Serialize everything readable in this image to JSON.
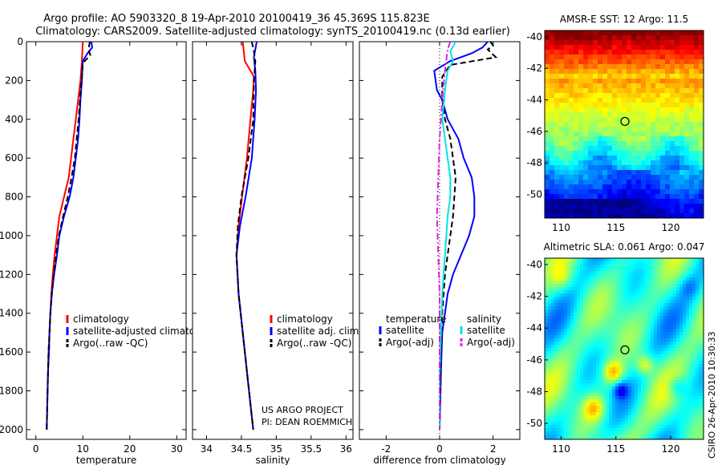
{
  "header": {
    "title_line1": "Argo profile: AO 5903320_8 19-Apr-2010 20100419_36 45.369S 115.823E",
    "title_line2": "Climatology: CARS2009. Satellite-adjusted climatology: synTS_20100419.nc (0.13d earlier)"
  },
  "footer": {
    "credit_line1": "US ARGO PROJECT",
    "credit_line2": "PI: DEAN ROEMMICH",
    "side_stamp": "CSIRO 26-Apr-2010 10:30:33"
  },
  "colors": {
    "climatology": "#ff0000",
    "satellite": "#0000ff",
    "argo": "#000000",
    "salinity_satellite": "#00e5e5",
    "salinity_argo": "#e020e0"
  },
  "chart_data": [
    {
      "id": "temperature",
      "type": "line",
      "xlabel": "temperature",
      "ylabel": "",
      "xlim": [
        -2,
        32
      ],
      "ylim": [
        2050,
        0
      ],
      "y_reversed": true,
      "xticks": [
        0,
        10,
        20,
        30
      ],
      "yticks": [
        0,
        200,
        400,
        600,
        800,
        1000,
        1200,
        1400,
        1600,
        1800,
        2000
      ],
      "legend": {
        "position": "lower-right",
        "entries": [
          "climatology",
          "satellite-adjusted climatology",
          "Argo(..raw -QC)"
        ]
      },
      "series": [
        {
          "name": "climatology",
          "color_key": "climatology",
          "dash": "solid",
          "points": [
            [
              10.0,
              0
            ],
            [
              9.9,
              50
            ],
            [
              9.8,
              100
            ],
            [
              9.5,
              200
            ],
            [
              9.0,
              300
            ],
            [
              8.5,
              400
            ],
            [
              8.0,
              500
            ],
            [
              7.5,
              600
            ],
            [
              7.0,
              700
            ],
            [
              6.0,
              800
            ],
            [
              5.0,
              900
            ],
            [
              4.5,
              1000
            ],
            [
              4.0,
              1100
            ],
            [
              3.6,
              1200
            ],
            [
              3.3,
              1300
            ],
            [
              3.1,
              1400
            ],
            [
              2.9,
              1500
            ],
            [
              2.7,
              1600
            ],
            [
              2.6,
              1700
            ],
            [
              2.5,
              1800
            ],
            [
              2.4,
              1900
            ],
            [
              2.3,
              2000
            ]
          ]
        },
        {
          "name": "satellite-adjusted climatology",
          "color_key": "satellite",
          "dash": "solid",
          "points": [
            [
              11.8,
              0
            ],
            [
              12.0,
              30
            ],
            [
              11.0,
              60
            ],
            [
              10.0,
              100
            ],
            [
              9.8,
              200
            ],
            [
              9.5,
              300
            ],
            [
              9.3,
              400
            ],
            [
              9.0,
              500
            ],
            [
              8.5,
              600
            ],
            [
              8.0,
              700
            ],
            [
              7.2,
              800
            ],
            [
              6.0,
              900
            ],
            [
              5.0,
              1000
            ],
            [
              4.5,
              1100
            ],
            [
              3.9,
              1200
            ],
            [
              3.4,
              1300
            ],
            [
              3.1,
              1400
            ],
            [
              2.9,
              1500
            ],
            [
              2.8,
              1600
            ],
            [
              2.6,
              1700
            ],
            [
              2.5,
              1800
            ],
            [
              2.4,
              1900
            ],
            [
              2.3,
              2000
            ]
          ]
        },
        {
          "name": "Argo(..raw -QC)",
          "color_key": "argo",
          "dash": "dashed",
          "points": [
            [
              11.5,
              0
            ],
            [
              11.2,
              40
            ],
            [
              11.6,
              70
            ],
            [
              10.0,
              110
            ],
            [
              9.7,
              200
            ],
            [
              9.4,
              300
            ],
            [
              9.1,
              400
            ],
            [
              8.7,
              500
            ],
            [
              8.3,
              600
            ],
            [
              7.6,
              700
            ],
            [
              6.8,
              800
            ],
            [
              5.8,
              900
            ],
            [
              4.9,
              1000
            ],
            [
              4.3,
              1100
            ],
            [
              3.8,
              1200
            ],
            [
              3.4,
              1300
            ],
            [
              3.1,
              1400
            ],
            [
              2.9,
              1500
            ],
            [
              2.7,
              1600
            ],
            [
              2.6,
              1700
            ],
            [
              2.5,
              1800
            ],
            [
              2.4,
              1900
            ],
            [
              2.3,
              2000
            ]
          ]
        }
      ]
    },
    {
      "id": "salinity",
      "type": "line",
      "xlabel": "salinity",
      "ylabel": "",
      "xlim": [
        33.8,
        36.1
      ],
      "ylim": [
        2050,
        0
      ],
      "y_reversed": true,
      "xticks": [
        34,
        34.5,
        35,
        35.5,
        36
      ],
      "yticks": [],
      "legend": {
        "position": "lower-right",
        "entries": [
          "climatology",
          "satellite adj. clim.",
          "Argo(..raw -QC)"
        ]
      },
      "series": [
        {
          "name": "climatology",
          "color_key": "climatology",
          "dash": "solid",
          "points": [
            [
              34.52,
              0
            ],
            [
              34.55,
              100
            ],
            [
              34.68,
              180
            ],
            [
              34.67,
              250
            ],
            [
              34.63,
              400
            ],
            [
              34.58,
              600
            ],
            [
              34.51,
              800
            ],
            [
              34.46,
              950
            ],
            [
              34.43,
              1100
            ],
            [
              34.46,
              1300
            ],
            [
              34.52,
              1500
            ],
            [
              34.58,
              1700
            ],
            [
              34.64,
              1900
            ],
            [
              34.67,
              2000
            ]
          ]
        },
        {
          "name": "satellite adj. clim.",
          "color_key": "satellite",
          "dash": "solid",
          "points": [
            [
              34.72,
              0
            ],
            [
              34.68,
              80
            ],
            [
              34.7,
              150
            ],
            [
              34.71,
              250
            ],
            [
              34.69,
              400
            ],
            [
              34.65,
              600
            ],
            [
              34.56,
              800
            ],
            [
              34.48,
              950
            ],
            [
              34.43,
              1100
            ],
            [
              34.46,
              1300
            ],
            [
              34.52,
              1500
            ],
            [
              34.58,
              1700
            ],
            [
              34.64,
              1900
            ],
            [
              34.67,
              2000
            ]
          ]
        },
        {
          "name": "Argo(..raw -QC)",
          "color_key": "argo",
          "dash": "dashed",
          "points": [
            [
              34.65,
              0
            ],
            [
              34.68,
              50
            ],
            [
              34.7,
              100
            ],
            [
              34.68,
              200
            ],
            [
              34.67,
              400
            ],
            [
              34.6,
              600
            ],
            [
              34.5,
              800
            ],
            [
              34.45,
              950
            ],
            [
              34.43,
              1100
            ],
            [
              34.46,
              1300
            ],
            [
              34.52,
              1500
            ],
            [
              34.58,
              1700
            ],
            [
              34.64,
              1900
            ],
            [
              34.67,
              2000
            ]
          ]
        }
      ]
    },
    {
      "id": "difference",
      "type": "line",
      "xlabel": "difference from climatology",
      "ylabel": "",
      "xlim": [
        -3,
        3
      ],
      "ylim": [
        2050,
        0
      ],
      "y_reversed": true,
      "xticks": [
        -2,
        0,
        2
      ],
      "yticks": [],
      "legend": {
        "position": "lower-center",
        "temperature_header": "temperature",
        "salinity_header": "salinity",
        "temperature_entries": [
          "satellite",
          "Argo(-adj)"
        ],
        "salinity_entries": [
          "satellite",
          "Argo(-adj)"
        ]
      },
      "series": [
        {
          "name": "temperature satellite",
          "color_key": "satellite",
          "dash": "solid",
          "points": [
            [
              1.8,
              0
            ],
            [
              1.6,
              30
            ],
            [
              1.2,
              60
            ],
            [
              0.4,
              100
            ],
            [
              -0.2,
              150
            ],
            [
              -0.1,
              250
            ],
            [
              0.1,
              300
            ],
            [
              0.3,
              400
            ],
            [
              0.7,
              500
            ],
            [
              0.9,
              600
            ],
            [
              1.2,
              700
            ],
            [
              1.3,
              800
            ],
            [
              1.3,
              900
            ],
            [
              1.1,
              1000
            ],
            [
              0.8,
              1100
            ],
            [
              0.5,
              1200
            ],
            [
              0.3,
              1300
            ],
            [
              0.2,
              1400
            ],
            [
              0.1,
              1500
            ],
            [
              0.05,
              1700
            ],
            [
              0.0,
              2000
            ]
          ]
        },
        {
          "name": "temperature Argo(-adj)",
          "color_key": "argo",
          "dash": "dashed",
          "points": [
            [
              1.9,
              0
            ],
            [
              2.0,
              20
            ],
            [
              1.8,
              40
            ],
            [
              2.1,
              80
            ],
            [
              0.4,
              120
            ],
            [
              0.1,
              180
            ],
            [
              0.1,
              300
            ],
            [
              0.2,
              400
            ],
            [
              0.4,
              500
            ],
            [
              0.5,
              600
            ],
            [
              0.6,
              700
            ],
            [
              0.5,
              900
            ],
            [
              0.3,
              1100
            ],
            [
              0.2,
              1200
            ],
            [
              0.1,
              1400
            ],
            [
              0.05,
              1600
            ],
            [
              0.0,
              2000
            ]
          ]
        },
        {
          "name": "salinity satellite",
          "color_key": "salinity_satellite",
          "dash": "solid",
          "points": [
            [
              0.6,
              0
            ],
            [
              0.4,
              50
            ],
            [
              0.5,
              100
            ],
            [
              0.3,
              150
            ],
            [
              0.2,
              250
            ],
            [
              0.1,
              400
            ],
            [
              0.2,
              500
            ],
            [
              0.3,
              600
            ],
            [
              0.4,
              700
            ],
            [
              0.4,
              800
            ],
            [
              0.3,
              900
            ],
            [
              0.2,
              1100
            ],
            [
              0.1,
              1300
            ],
            [
              0.05,
              1500
            ],
            [
              0.0,
              1700
            ],
            [
              0.0,
              2000
            ]
          ]
        },
        {
          "name": "salinity Argo(-adj)",
          "color_key": "salinity_argo",
          "dash": "dashdot",
          "points": [
            [
              0.4,
              0
            ],
            [
              0.3,
              40
            ],
            [
              0.2,
              150
            ],
            [
              0.1,
              300
            ],
            [
              0.0,
              500
            ],
            [
              -0.05,
              700
            ],
            [
              -0.1,
              900
            ],
            [
              -0.05,
              1100
            ],
            [
              0.0,
              1300
            ],
            [
              0.0,
              2000
            ]
          ]
        }
      ]
    },
    {
      "id": "sst_map",
      "type": "heatmap",
      "title": "AMSR-E SST: 12 Argo: 11.5",
      "xlim": [
        108.5,
        123
      ],
      "ylim": [
        -51.5,
        -39.6
      ],
      "xticks": [
        110,
        115,
        120
      ],
      "yticks": [
        -40,
        -42,
        -44,
        -46,
        -48,
        -50
      ],
      "xticklabels": [
        "110",
        "115",
        "120"
      ],
      "yticklabels": [
        "-40",
        "-42",
        "-44",
        "-46",
        "-48",
        "-50"
      ],
      "marker": {
        "lon": 115.823,
        "lat": -45.369
      }
    },
    {
      "id": "sla_map",
      "type": "heatmap",
      "title": "Altimetric SLA: 0.061 Argo: 0.047",
      "xlim": [
        108.5,
        123
      ],
      "ylim": [
        -51.0,
        -39.6
      ],
      "xticks": [
        110,
        115,
        120
      ],
      "yticks": [
        -40,
        -42,
        -44,
        -46,
        -48,
        -50
      ],
      "xticklabels": [
        "110",
        "115",
        "120"
      ],
      "yticklabels": [
        "-40",
        "-42",
        "-44",
        "-46",
        "-48",
        "-50"
      ],
      "marker": {
        "lon": 115.823,
        "lat": -45.369
      }
    }
  ]
}
